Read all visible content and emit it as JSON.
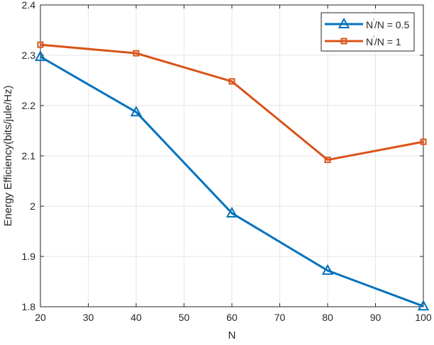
{
  "chart_data": {
    "type": "line",
    "title": "",
    "xlabel": "N",
    "ylabel": "Energy Efficiency(bits/jule/Hz)",
    "xlim": [
      20,
      100
    ],
    "ylim": [
      1.8,
      2.4
    ],
    "xticks": [
      20,
      30,
      40,
      50,
      60,
      70,
      80,
      90,
      100
    ],
    "yticks": [
      1.8,
      1.9,
      2.0,
      2.1,
      2.2,
      2.3,
      2.4
    ],
    "ytick_labels": [
      "1.8",
      "1.9",
      "2",
      "2.1",
      "2.2",
      "2.3",
      "2.4"
    ],
    "grid": true,
    "legend_position": "top-right",
    "x": [
      20,
      40,
      60,
      80,
      100
    ],
    "series": [
      {
        "name": "N'/N = 0.5",
        "legend_main": "N",
        "legend_rest": "/N = 0.5",
        "color": "#0072bd",
        "marker": "triangle",
        "values": [
          2.297,
          2.187,
          1.986,
          1.872,
          1.801
        ]
      },
      {
        "name": "N'/N = 1",
        "legend_main": "N",
        "legend_rest": "/N = 1",
        "color": "#d95319",
        "marker": "square",
        "values": [
          2.321,
          2.304,
          2.248,
          2.092,
          2.128
        ]
      }
    ]
  }
}
